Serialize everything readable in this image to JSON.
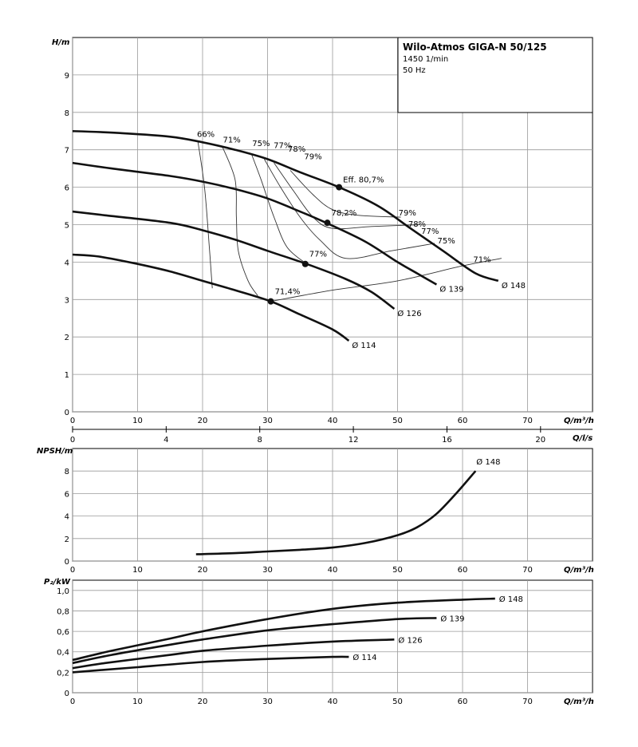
{
  "colors": {
    "grid": "#9a9a9a",
    "curve": "#111111",
    "iso": "#333333",
    "frame": "#000000"
  },
  "chart_data": [
    {
      "type": "line",
      "id": "head",
      "title": "Wilo-Atmos GIGA-N 50/125",
      "subtitle": [
        "1450 1/min",
        "50 Hz"
      ],
      "xlabel": "Q/m³/h",
      "ylabel": "H/m",
      "xlim": [
        0,
        80
      ],
      "ylim": [
        0,
        10
      ],
      "xticks": [
        0,
        10,
        20,
        30,
        40,
        50,
        60,
        70
      ],
      "yticks": [
        0,
        1,
        2,
        3,
        4,
        5,
        6,
        7,
        8,
        9
      ],
      "secondary_x": {
        "label": "Q/l/s",
        "ticks": [
          0,
          4,
          8,
          12,
          16,
          20
        ]
      },
      "grid": true,
      "series": [
        {
          "name": "Ø 148",
          "points": [
            [
              0,
              7.5
            ],
            [
              7,
              7.45
            ],
            [
              15,
              7.35
            ],
            [
              20,
              7.2
            ],
            [
              25,
              7.0
            ],
            [
              30,
              6.75
            ],
            [
              35,
              6.4
            ],
            [
              41,
              6.0
            ],
            [
              47,
              5.5
            ],
            [
              52,
              4.9
            ],
            [
              57,
              4.3
            ],
            [
              62,
              3.7
            ],
            [
              65.5,
              3.5
            ]
          ],
          "bep": [
            41,
            6.0
          ],
          "bep_label": "Eff. 80,7%"
        },
        {
          "name": "Ø 139",
          "points": [
            [
              0,
              6.65
            ],
            [
              6,
              6.5
            ],
            [
              15,
              6.3
            ],
            [
              20,
              6.15
            ],
            [
              25,
              5.95
            ],
            [
              30,
              5.7
            ],
            [
              35,
              5.35
            ],
            [
              39,
              5.05
            ],
            [
              45,
              4.55
            ],
            [
              50,
              4.0
            ],
            [
              53,
              3.7
            ],
            [
              56,
              3.4
            ]
          ],
          "bep": [
            39.2,
            5.05
          ],
          "bep_label": "78,2%"
        },
        {
          "name": "Ø 126",
          "points": [
            [
              0,
              5.35
            ],
            [
              5,
              5.25
            ],
            [
              15,
              5.05
            ],
            [
              20,
              4.85
            ],
            [
              25,
              4.6
            ],
            [
              30,
              4.3
            ],
            [
              36,
              3.95
            ],
            [
              42,
              3.55
            ],
            [
              46,
              3.2
            ],
            [
              49.5,
              2.75
            ]
          ],
          "bep": [
            35.8,
            3.95
          ],
          "bep_label": "77%"
        },
        {
          "name": "Ø 114",
          "points": [
            [
              0,
              4.2
            ],
            [
              4,
              4.15
            ],
            [
              10,
              3.95
            ],
            [
              15,
              3.75
            ],
            [
              20,
              3.5
            ],
            [
              25,
              3.25
            ],
            [
              30.5,
              2.95
            ],
            [
              35,
              2.6
            ],
            [
              40,
              2.2
            ],
            [
              42.5,
              1.9
            ]
          ],
          "bep": [
            30.5,
            2.95
          ],
          "bep_label": "71,4%"
        }
      ],
      "efficiency_labels": [
        "66%",
        "71%",
        "75%",
        "77%",
        "78%",
        "79%",
        "79%",
        "78%",
        "77%",
        "75%",
        "71%"
      ],
      "diameter_labels": [
        "Ø 148",
        "Ø 139",
        "Ø 126",
        "Ø 114"
      ]
    },
    {
      "type": "line",
      "id": "npsh",
      "ylabel": "NPSH/m",
      "xlabel": "Q/m³/h",
      "xlim": [
        0,
        80
      ],
      "ylim": [
        0,
        10
      ],
      "xticks": [
        0,
        10,
        20,
        30,
        40,
        50,
        60,
        70
      ],
      "yticks": [
        0,
        2,
        4,
        6,
        8
      ],
      "grid": true,
      "series": [
        {
          "name": "Ø 148",
          "points": [
            [
              19,
              0.6
            ],
            [
              25,
              0.7
            ],
            [
              30,
              0.85
            ],
            [
              35,
              1.0
            ],
            [
              40,
              1.2
            ],
            [
              45,
              1.6
            ],
            [
              50,
              2.3
            ],
            [
              53,
              3.0
            ],
            [
              56,
              4.2
            ],
            [
              59,
              6.0
            ],
            [
              62,
              8.0
            ]
          ]
        }
      ]
    },
    {
      "type": "line",
      "id": "power",
      "ylabel": "P₂/kW",
      "xlabel": "Q/m³/h",
      "xlim": [
        0,
        80
      ],
      "ylim": [
        0,
        1.1
      ],
      "xticks": [
        0,
        10,
        20,
        30,
        40,
        50,
        60,
        70
      ],
      "yticks": [
        "0",
        "0,2",
        "0,4",
        "0,6",
        "0,8",
        "1,0"
      ],
      "grid": true,
      "series": [
        {
          "name": "Ø 148",
          "points": [
            [
              0,
              0.32
            ],
            [
              6,
              0.41
            ],
            [
              15,
              0.53
            ],
            [
              20,
              0.6
            ],
            [
              30,
              0.72
            ],
            [
              40,
              0.82
            ],
            [
              50,
              0.88
            ],
            [
              60,
              0.91
            ],
            [
              65,
              0.92
            ]
          ]
        },
        {
          "name": "Ø 139",
          "points": [
            [
              0,
              0.29
            ],
            [
              6,
              0.37
            ],
            [
              15,
              0.47
            ],
            [
              20,
              0.52
            ],
            [
              30,
              0.61
            ],
            [
              40,
              0.67
            ],
            [
              50,
              0.72
            ],
            [
              56,
              0.73
            ]
          ]
        },
        {
          "name": "Ø 126",
          "points": [
            [
              0,
              0.24
            ],
            [
              5,
              0.29
            ],
            [
              15,
              0.37
            ],
            [
              20,
              0.41
            ],
            [
              30,
              0.46
            ],
            [
              40,
              0.5
            ],
            [
              49.5,
              0.52
            ]
          ]
        },
        {
          "name": "Ø 114",
          "points": [
            [
              0,
              0.2
            ],
            [
              4,
              0.22
            ],
            [
              10,
              0.25
            ],
            [
              20,
              0.3
            ],
            [
              30,
              0.33
            ],
            [
              40,
              0.35
            ],
            [
              42.5,
              0.35
            ]
          ]
        }
      ]
    }
  ]
}
